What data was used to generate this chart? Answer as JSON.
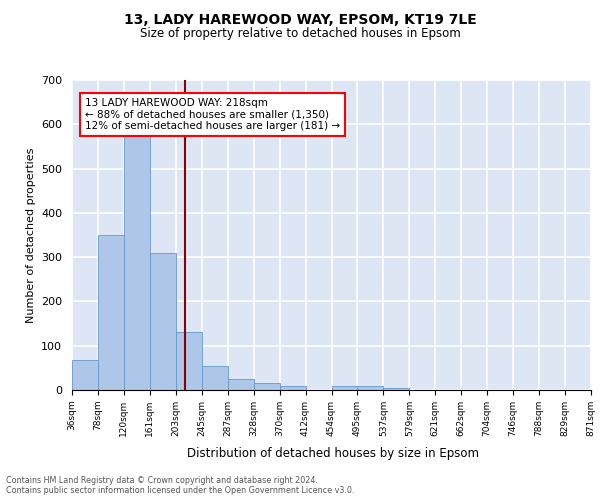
{
  "title1": "13, LADY HAREWOOD WAY, EPSOM, KT19 7LE",
  "title2": "Size of property relative to detached houses in Epsom",
  "xlabel": "Distribution of detached houses by size in Epsom",
  "ylabel": "Number of detached properties",
  "bins": [
    "36sqm",
    "78sqm",
    "120sqm",
    "161sqm",
    "203sqm",
    "245sqm",
    "287sqm",
    "328sqm",
    "370sqm",
    "412sqm",
    "454sqm",
    "495sqm",
    "537sqm",
    "579sqm",
    "621sqm",
    "662sqm",
    "704sqm",
    "746sqm",
    "788sqm",
    "829sqm",
    "871sqm"
  ],
  "values": [
    68,
    350,
    580,
    310,
    130,
    55,
    25,
    15,
    8,
    0,
    10,
    10,
    5,
    0,
    0,
    0,
    0,
    0,
    0,
    0
  ],
  "bar_color": "#aec6e8",
  "bar_edge_color": "#6699cc",
  "property_line_color": "#8b0000",
  "annotation_text": "13 LADY HAREWOOD WAY: 218sqm\n← 88% of detached houses are smaller (1,350)\n12% of semi-detached houses are larger (181) →",
  "annotation_box_color": "white",
  "annotation_box_edge_color": "red",
  "ylim": [
    0,
    700
  ],
  "yticks": [
    0,
    100,
    200,
    300,
    400,
    500,
    600,
    700
  ],
  "footnote": "Contains HM Land Registry data © Crown copyright and database right 2024.\nContains public sector information licensed under the Open Government Licence v3.0.",
  "background_color": "#dde6f5",
  "grid_color": "white"
}
